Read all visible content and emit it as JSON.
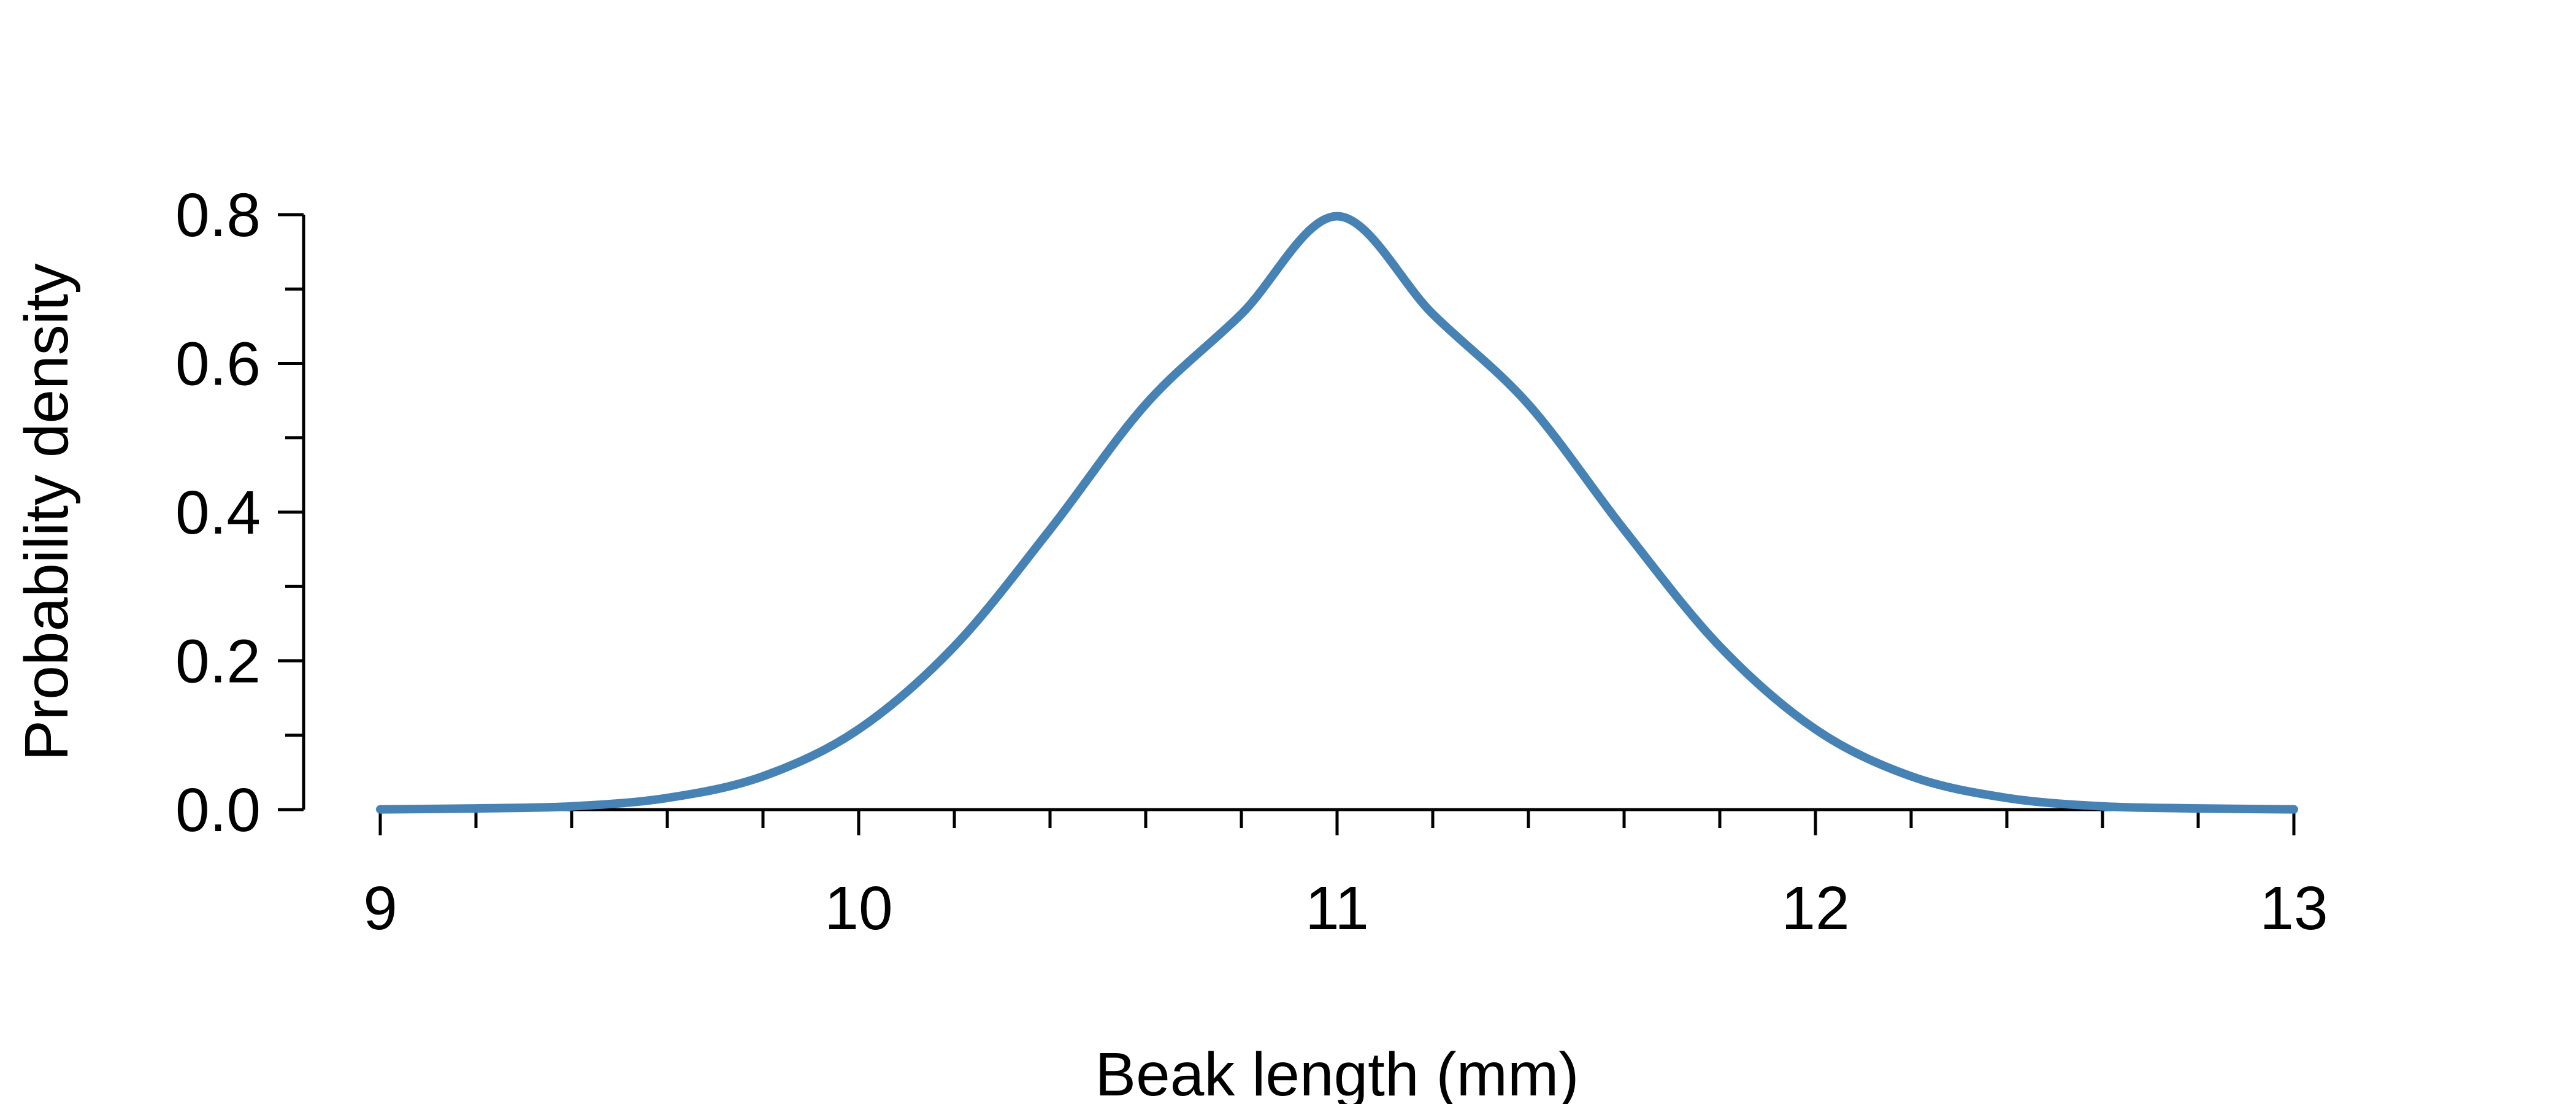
{
  "chart_data": {
    "type": "line",
    "xlabel": "Beak length (mm)",
    "ylabel": "Probability density",
    "xlim": [
      9,
      13
    ],
    "ylim": [
      0,
      0.8
    ],
    "x_ticks": [
      9,
      10,
      11,
      12,
      13
    ],
    "x_tick_labels": [
      "9",
      "10",
      "11",
      "12",
      "13"
    ],
    "x_minor_tick_step": 0.2,
    "y_ticks": [
      0.0,
      0.2,
      0.4,
      0.6,
      0.8
    ],
    "y_tick_labels": [
      "0.0",
      "0.2",
      "0.4",
      "0.6",
      "0.8"
    ],
    "y_minor_tick_step": 0.1,
    "grid": false,
    "series": [
      {
        "color": "#4682b4",
        "x": [
          9.0,
          9.2,
          9.4,
          9.6,
          9.8,
          10.0,
          10.2,
          10.4,
          10.6,
          10.8,
          11.0,
          11.2,
          11.4,
          11.6,
          11.8,
          12.0,
          12.2,
          12.4,
          12.6,
          12.8,
          13.0
        ],
        "y": [
          0.0003,
          0.0016,
          0.0044,
          0.0157,
          0.0448,
          0.108,
          0.2195,
          0.3765,
          0.5449,
          0.6664,
          0.7979,
          0.6664,
          0.5449,
          0.3765,
          0.2195,
          0.108,
          0.0448,
          0.0157,
          0.0044,
          0.0016,
          0.0003
        ]
      }
    ]
  }
}
